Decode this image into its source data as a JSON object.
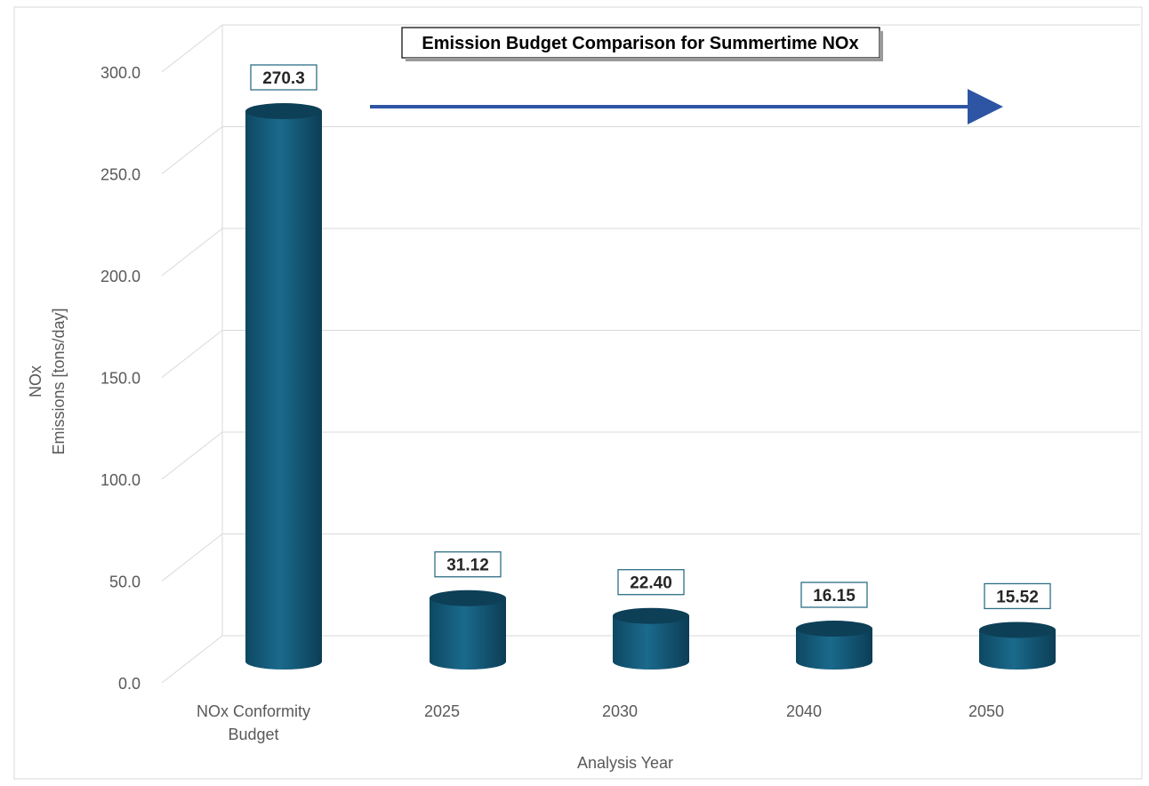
{
  "chart_data": {
    "type": "bar",
    "title": "Emission Budget Comparison for Summertime NOx",
    "xlabel": "Analysis Year",
    "ylabel_lines": [
      "NOx",
      "Emissions [tons/day]"
    ],
    "categories": [
      [
        "NOx Conformity",
        "Budget"
      ],
      [
        "2025"
      ],
      [
        "2030"
      ],
      [
        "2040"
      ],
      [
        "2050"
      ]
    ],
    "values": [
      270.3,
      31.12,
      22.4,
      16.15,
      15.52
    ],
    "value_labels": [
      "270.3",
      "31.12",
      "22.40",
      "16.15",
      "15.52"
    ],
    "yticks": [
      "0.0",
      "50.0",
      "100.0",
      "150.0",
      "200.0",
      "250.0",
      "300.0"
    ],
    "ylim": [
      0,
      300
    ],
    "grid": true,
    "bar_shape": "cylinder",
    "annotation": "arrow",
    "colors": {
      "bar_body": "#155a78",
      "bar_top": "#0d3f57",
      "label_border": "#2e6f86",
      "arrow": "#2e55a4",
      "grid": "#d9d9d9",
      "axis_text": "#595959"
    }
  }
}
